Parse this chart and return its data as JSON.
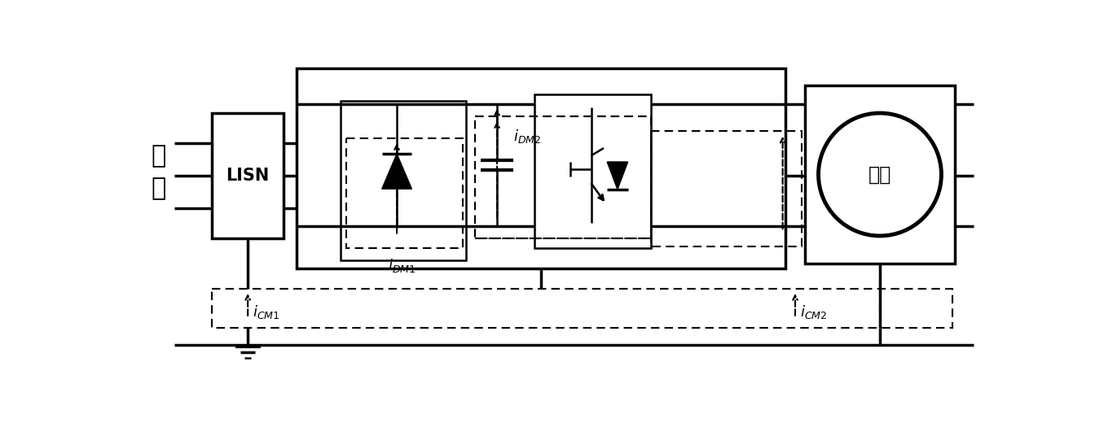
{
  "labels": {
    "dg1": "电",
    "dg2": "网",
    "lisn": "LISN",
    "motor": "电机",
    "iDM1": "$i_{DM1}$",
    "iDM2": "$i_{DM2}$",
    "iCM1": "$i_{CM1}$",
    "iCM2": "$i_{CM2}$"
  },
  "lw_thick": 2.5,
  "lw_med": 1.8,
  "lw_dash": 1.5
}
